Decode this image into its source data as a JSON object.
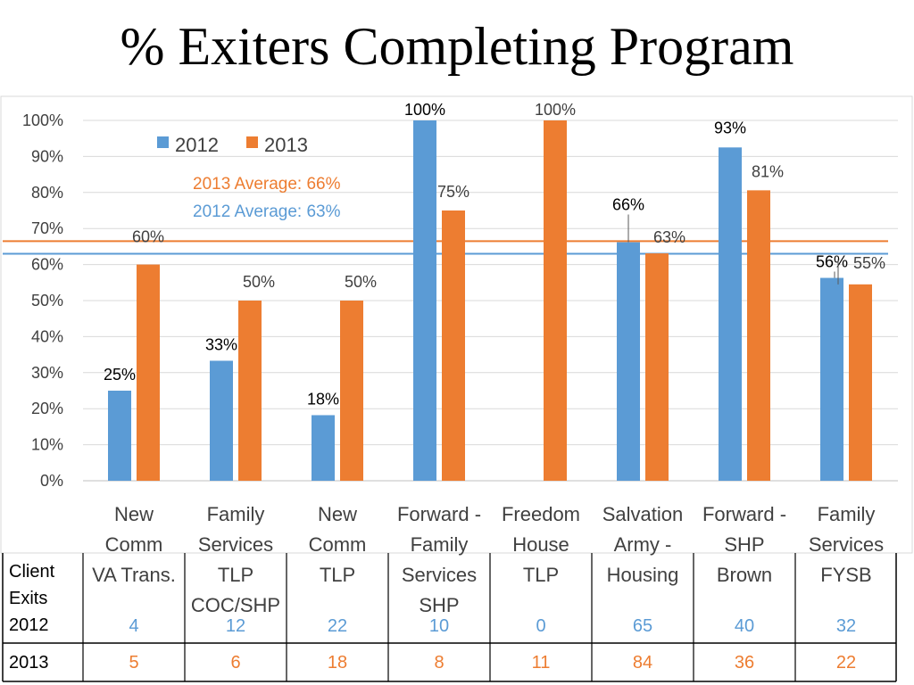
{
  "title": "% Exiters Completing Program",
  "colors": {
    "series2012": "#5B9BD5",
    "series2013": "#ED7D31",
    "grid": "#D9D9D9",
    "axis": "#BFBFBF",
    "text": "#404040"
  },
  "legend": {
    "label2012": "2012",
    "label2013": "2013"
  },
  "averages": {
    "avg2013_label": "2013 Average: 66%",
    "avg2012_label": "2012 Average: 63%",
    "avg2013": 66.5,
    "avg2012": 63
  },
  "chart_data": {
    "type": "bar",
    "title": "% Exiters Completing Program",
    "categories": [
      [
        "New",
        "Comm",
        "VA Trans."
      ],
      [
        "Family",
        "Services",
        "TLP",
        "COC/SHP"
      ],
      [
        "New",
        "Comm",
        "TLP"
      ],
      [
        "Forward -",
        "Family",
        "Services",
        "SHP"
      ],
      [
        "Freedom",
        "House",
        "TLP"
      ],
      [
        "Salvation",
        "Army -",
        "Housing"
      ],
      [
        "Forward -",
        "SHP",
        "Brown"
      ],
      [
        "Family",
        "Services",
        "FYSB"
      ]
    ],
    "series": [
      {
        "name": "2012",
        "values": [
          25,
          33.3,
          18.2,
          100,
          null,
          66.2,
          92.5,
          56.3
        ],
        "labels": [
          "25%",
          "33%",
          "18%",
          "100%",
          "",
          "66%",
          "93%",
          "56%"
        ]
      },
      {
        "name": "2013",
        "values": [
          60,
          50,
          50,
          75,
          100,
          63.1,
          80.6,
          54.5
        ],
        "labels": [
          "60%",
          "50%",
          "50%",
          "75%",
          "100%",
          "63%",
          "81%",
          "55%"
        ]
      }
    ],
    "yticks": [
      "0%",
      "10%",
      "20%",
      "30%",
      "40%",
      "50%",
      "60%",
      "70%",
      "80%",
      "90%",
      "100%"
    ],
    "ylim": [
      0,
      100
    ],
    "grid": true,
    "legend_position": "top-left"
  },
  "table": {
    "row2012_label": [
      "Client",
      "Exits",
      "2012"
    ],
    "row2013_label": "2013",
    "exits2012": [
      "4",
      "12",
      "22",
      "10",
      "0",
      "65",
      "40",
      "32"
    ],
    "exits2013": [
      "5",
      "6",
      "18",
      "8",
      "11",
      "84",
      "36",
      "22"
    ]
  }
}
